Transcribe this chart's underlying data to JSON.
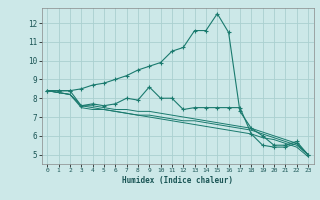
{
  "xlabel": "Humidex (Indice chaleur)",
  "background_color": "#cce8e8",
  "grid_color": "#aad0d0",
  "line_color": "#1a7a6e",
  "xlim": [
    -0.5,
    23.5
  ],
  "ylim": [
    4.5,
    12.8
  ],
  "xticks": [
    0,
    1,
    2,
    3,
    4,
    5,
    6,
    7,
    8,
    9,
    10,
    11,
    12,
    13,
    14,
    15,
    16,
    17,
    18,
    19,
    20,
    21,
    22,
    23
  ],
  "yticks": [
    5,
    6,
    7,
    8,
    9,
    10,
    11,
    12
  ],
  "line1_x": [
    0,
    1,
    2,
    3,
    4,
    5,
    6,
    7,
    8,
    9,
    10,
    11,
    12,
    13,
    14,
    15,
    16,
    17,
    18,
    19,
    20,
    21,
    22,
    23
  ],
  "line1_y": [
    8.4,
    8.4,
    8.4,
    8.5,
    8.7,
    8.8,
    9.0,
    9.2,
    9.5,
    9.7,
    9.9,
    10.5,
    10.7,
    11.6,
    11.6,
    12.5,
    11.5,
    7.3,
    6.4,
    6.0,
    5.5,
    5.5,
    5.7,
    5.0
  ],
  "line2_x": [
    0,
    1,
    2,
    3,
    4,
    5,
    6,
    7,
    8,
    9,
    10,
    11,
    12,
    13,
    14,
    15,
    16,
    17,
    18,
    19,
    20,
    21,
    22,
    23
  ],
  "line2_y": [
    8.4,
    8.4,
    8.4,
    7.6,
    7.7,
    7.6,
    7.7,
    8.0,
    7.9,
    8.6,
    8.0,
    8.0,
    7.4,
    7.5,
    7.5,
    7.5,
    7.5,
    7.5,
    6.1,
    5.5,
    5.4,
    5.4,
    5.6,
    5.0
  ],
  "line3_x": [
    0,
    1,
    2,
    3,
    4,
    5,
    6,
    7,
    8,
    9,
    10,
    11,
    12,
    13,
    14,
    15,
    16,
    17,
    18,
    19,
    20,
    21,
    22,
    23
  ],
  "line3_y": [
    8.4,
    8.3,
    8.2,
    7.6,
    7.6,
    7.5,
    7.4,
    7.4,
    7.3,
    7.3,
    7.2,
    7.1,
    7.0,
    6.9,
    6.8,
    6.7,
    6.6,
    6.5,
    6.4,
    6.2,
    6.0,
    5.8,
    5.6,
    5.0
  ],
  "line4_x": [
    0,
    1,
    2,
    3,
    4,
    5,
    6,
    7,
    8,
    9,
    10,
    11,
    12,
    13,
    14,
    15,
    16,
    17,
    18,
    19,
    20,
    21,
    22,
    23
  ],
  "line4_y": [
    8.4,
    8.3,
    8.2,
    7.6,
    7.5,
    7.4,
    7.3,
    7.2,
    7.1,
    7.1,
    7.0,
    6.9,
    6.8,
    6.8,
    6.7,
    6.6,
    6.5,
    6.4,
    6.3,
    6.1,
    5.9,
    5.7,
    5.5,
    5.0
  ],
  "line5_x": [
    0,
    1,
    2,
    3,
    4,
    5,
    6,
    7,
    8,
    9,
    10,
    11,
    12,
    13,
    14,
    15,
    16,
    17,
    18,
    19,
    20,
    21,
    22,
    23
  ],
  "line5_y": [
    8.4,
    8.3,
    8.2,
    7.5,
    7.4,
    7.4,
    7.3,
    7.2,
    7.1,
    7.0,
    6.9,
    6.8,
    6.7,
    6.6,
    6.5,
    6.4,
    6.3,
    6.2,
    6.1,
    5.9,
    5.8,
    5.6,
    5.4,
    4.9
  ]
}
